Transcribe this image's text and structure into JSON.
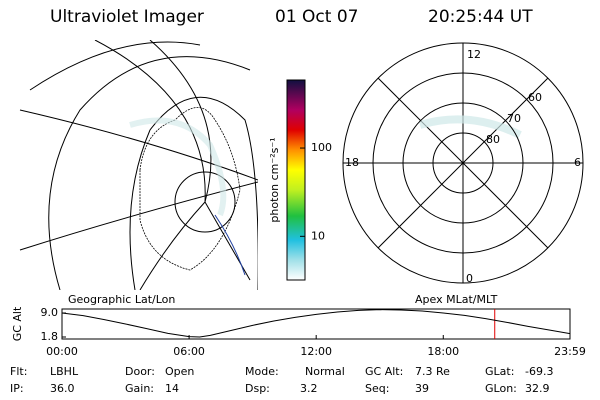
{
  "header": {
    "title": "Ultraviolet Imager",
    "date": "01 Oct 07",
    "time": "20:25:44 UT"
  },
  "colorbar": {
    "label": "photon cm⁻²s⁻¹",
    "lim": [
      3.2,
      590
    ],
    "ticks": [
      10,
      100
    ]
  },
  "polar": {
    "hour_labels": {
      "top": "12",
      "left": "18",
      "right": "6",
      "bottom": "0"
    },
    "lat_labels": [
      60,
      70,
      80
    ]
  },
  "left_label": "Geographic Lat/Lon",
  "right_label": "Apex MLat/MLT",
  "altitude": {
    "ylabel": "GC Alt",
    "xlim": [
      0,
      23.983
    ],
    "ylim": [
      1.2,
      10.2
    ],
    "yticks": [
      1.8,
      {
        "value": 9,
        "label": "9.0"
      }
    ],
    "xticks": [
      {
        "value": 0,
        "label": "00:00"
      },
      {
        "value": 6,
        "label": "06:00"
      },
      {
        "value": 12,
        "label": "12:00"
      },
      {
        "value": 18,
        "label": "18:00"
      },
      {
        "value": 23.983,
        "label": "23:59"
      }
    ],
    "x": [
      0,
      1,
      2,
      3,
      4,
      5,
      6,
      6.5,
      7,
      8,
      9,
      10,
      11,
      12,
      13,
      14,
      15,
      16,
      17,
      18,
      19,
      20,
      21,
      22,
      23,
      23.983
    ],
    "values": [
      9.0,
      8.2,
      7.0,
      5.7,
      4.3,
      2.9,
      1.9,
      1.8,
      2.3,
      3.8,
      5.3,
      6.6,
      7.7,
      8.6,
      9.3,
      9.8,
      10.0,
      9.9,
      9.6,
      9.0,
      8.3,
      7.3,
      6.2,
      5.0,
      3.9,
      2.8
    ],
    "marker_x": 20.43,
    "marker_color": "#e00000"
  },
  "footer": [
    [
      [
        "Flt:",
        "LBHL"
      ],
      [
        "Door:",
        "Open"
      ],
      [
        "Mode:",
        "Normal"
      ],
      [
        "GC Alt:",
        "7.3 Re"
      ],
      [
        "GLat:",
        "-69.3"
      ]
    ],
    [
      [
        "IP:",
        "36.0"
      ],
      [
        "Gain:",
        "14"
      ],
      [
        "Dsp:",
        "3.2"
      ],
      [
        "Seq:",
        "39"
      ],
      [
        "GLon:",
        "32.9"
      ]
    ]
  ]
}
